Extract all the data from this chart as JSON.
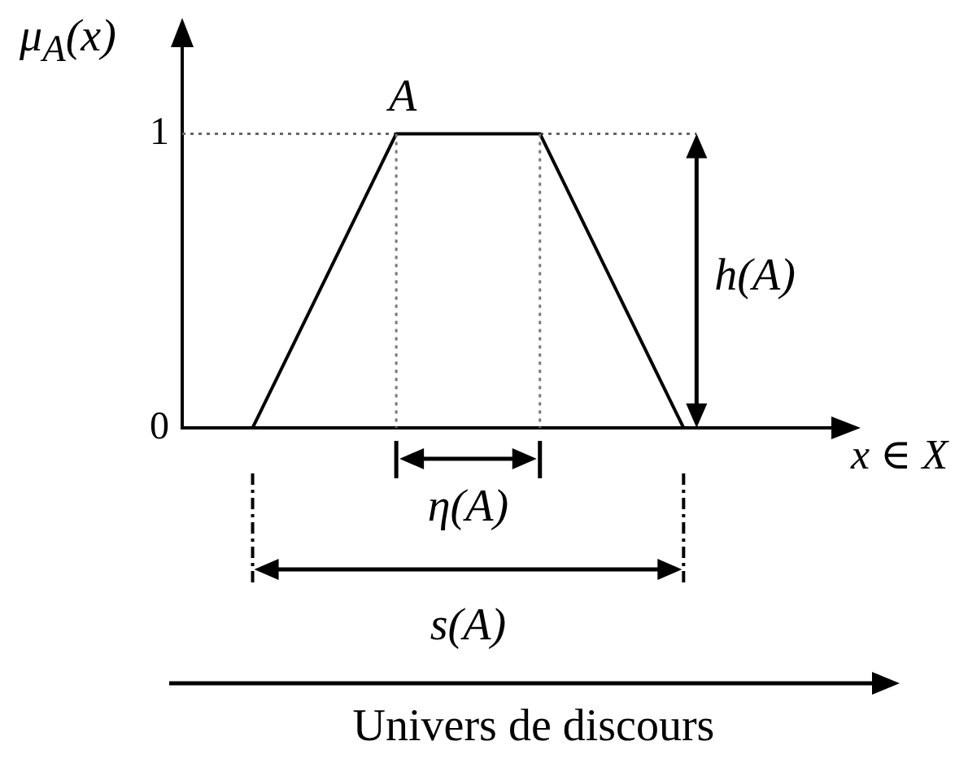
{
  "chart_data": {
    "type": "line",
    "xlabel": "x ∈ X",
    "ylabel": "μ$_{A}$(x)",
    "categories": [
      null,
      null,
      null,
      null
    ],
    "series": [
      {
        "name": "A",
        "color": "#000000",
        "values": [
          0,
          1,
          1,
          0
        ]
      }
    ],
    "ylim": [
      0,
      1.3
    ],
    "yticks": [
      0,
      1
    ],
    "tick_labels": "y",
    "ref_lines": [
      {
        "axis": "y",
        "value": 1,
        "color": "#666666",
        "line_style": "dotted"
      }
    ],
    "annotations": [
      "η(A)",
      "s(A)",
      "h(A)",
      "Univers de discours"
    ]
  }
}
